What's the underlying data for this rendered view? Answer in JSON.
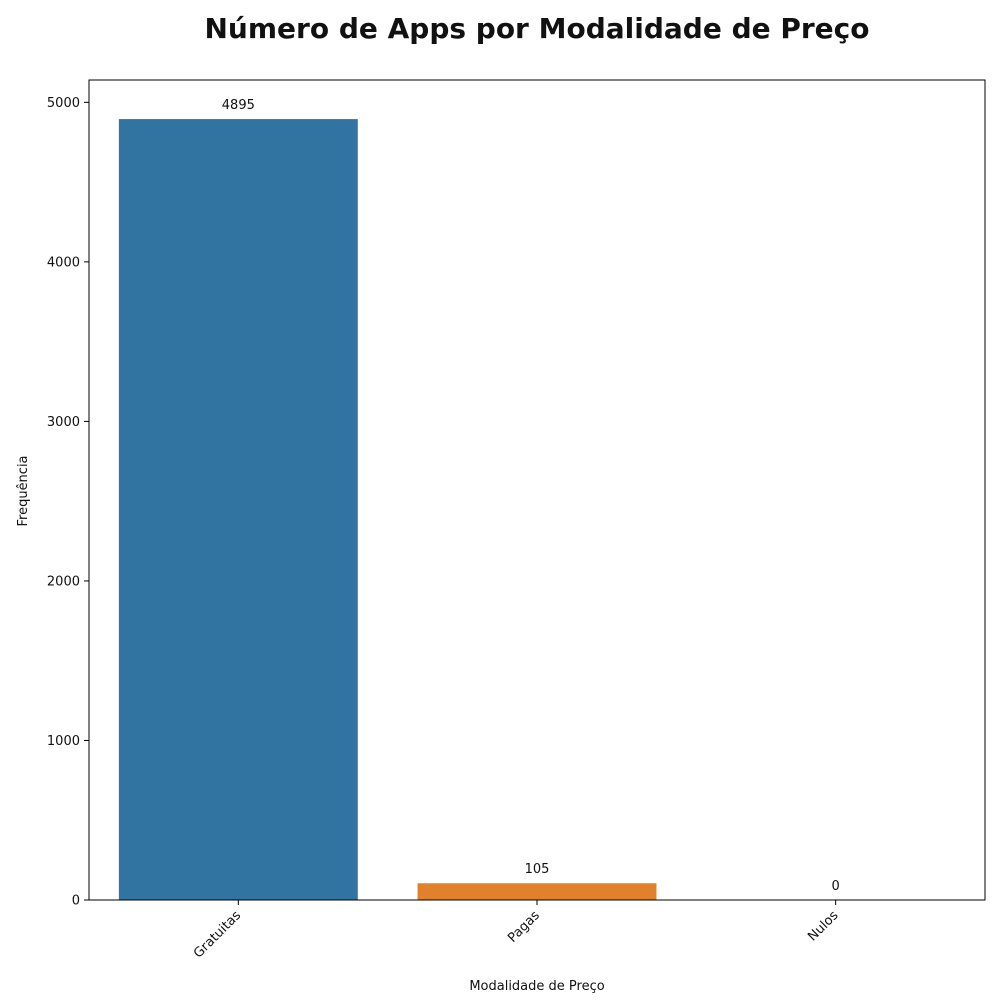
{
  "chart_data": {
    "type": "bar",
    "title": "Número de Apps por Modalidade de Preço",
    "xlabel": "Modalidade de Preço",
    "ylabel": "Frequência",
    "categories": [
      "Gratuitas",
      "Pagas",
      "Nulos"
    ],
    "values": [
      4895,
      105,
      0
    ],
    "value_labels": [
      "4895",
      "105",
      "0"
    ],
    "colors": [
      "#3274a1",
      "#e1812c",
      "#3a923a"
    ],
    "ylim": [
      0,
      5140
    ],
    "yticks": [
      0,
      1000,
      2000,
      3000,
      4000,
      5000
    ],
    "grid": false,
    "x_tick_rotation_deg": 45
  }
}
